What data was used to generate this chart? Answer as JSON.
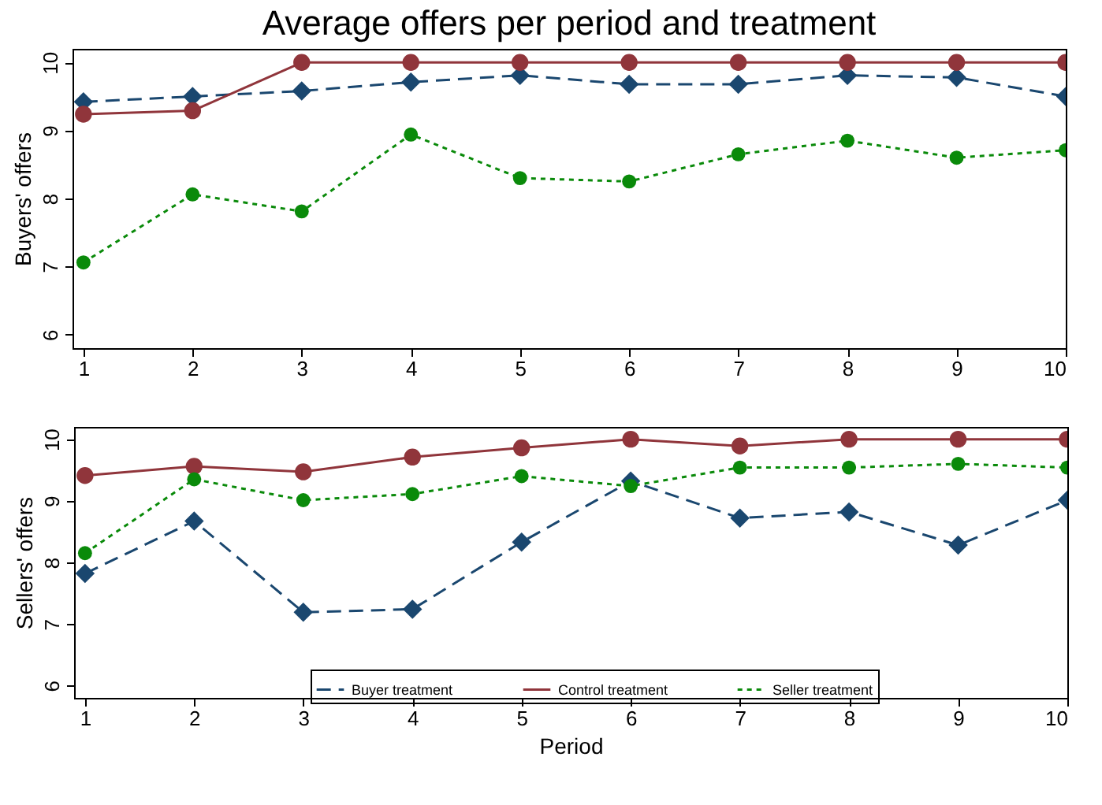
{
  "chart_data": [
    {
      "type": "line",
      "title": "Average offers per period and treatment",
      "ylabel": "Buyers' offers",
      "x": [
        1,
        2,
        3,
        4,
        5,
        6,
        7,
        8,
        9,
        10
      ],
      "xlim": [
        0.9,
        10
      ],
      "xticks": [
        1,
        2,
        3,
        4,
        5,
        6,
        7,
        8,
        9,
        10
      ],
      "ylim": [
        5.8,
        10.2
      ],
      "yticks": [
        6,
        7,
        8,
        9,
        10
      ],
      "grid": false,
      "series": [
        {
          "color": "#1a476f",
          "marker": "diamond",
          "line_style": "dashed",
          "values": [
            9.42,
            9.5,
            9.58,
            9.71,
            9.81,
            9.68,
            9.68,
            9.81,
            9.78,
            9.5
          ]
        },
        {
          "color": "#90353b",
          "marker": "circle",
          "line_style": "solid",
          "values": [
            9.24,
            9.29,
            10,
            10,
            10,
            10,
            10,
            10,
            10,
            10
          ]
        },
        {
          "color": "#0a8a0a",
          "marker": "circle",
          "line_style": "dotted",
          "values": [
            7.06,
            8.06,
            7.81,
            8.94,
            8.3,
            8.25,
            8.65,
            8.85,
            8.6,
            8.71
          ]
        }
      ]
    },
    {
      "type": "line",
      "xlabel": "Period",
      "ylabel": "Sellers' offers",
      "x": [
        1,
        2,
        3,
        4,
        5,
        6,
        7,
        8,
        9,
        10
      ],
      "xlim": [
        0.9,
        10
      ],
      "xticks": [
        1,
        2,
        3,
        4,
        5,
        6,
        7,
        8,
        9,
        10
      ],
      "ylim": [
        5.8,
        10.2
      ],
      "yticks": [
        6,
        7,
        8,
        9,
        10
      ],
      "grid": false,
      "legend": "bottom",
      "series": [
        {
          "name": "Buyer treatment",
          "color": "#1a476f",
          "marker": "diamond",
          "line_style": "dashed",
          "values": [
            7.82,
            8.67,
            7.19,
            7.24,
            8.33,
            9.32,
            8.72,
            8.82,
            8.28,
            9.01
          ]
        },
        {
          "name": "Control treatment",
          "color": "#90353b",
          "marker": "circle",
          "line_style": "solid",
          "values": [
            9.41,
            9.56,
            9.47,
            9.71,
            9.86,
            10,
            9.89,
            10,
            10,
            10
          ]
        },
        {
          "name": "Seller treatment",
          "color": "#0a8a0a",
          "marker": "circle",
          "line_style": "dotted",
          "values": [
            8.15,
            9.35,
            9.01,
            9.11,
            9.4,
            9.24,
            9.54,
            9.54,
            9.6,
            9.54
          ]
        }
      ]
    }
  ]
}
